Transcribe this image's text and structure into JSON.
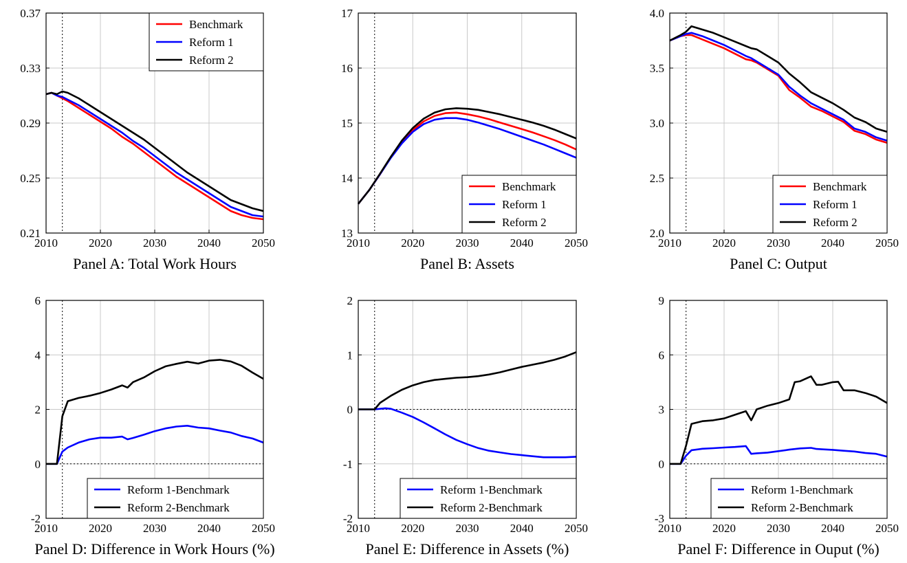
{
  "colors": {
    "benchmark": "#ff0000",
    "reform1": "#0000ff",
    "reform2": "#000000",
    "grid": "#c8c8c8"
  },
  "chart_data": [
    {
      "type": "line",
      "title": "Panel A: Total Work Hours",
      "xlim": [
        2010,
        2050
      ],
      "ylim": [
        0.21,
        0.37
      ],
      "xticks": [
        "2010",
        "2020",
        "2030",
        "2040",
        "2050"
      ],
      "yticks": [
        "0.21",
        "0.25",
        "0.29",
        "0.33",
        "0.37"
      ],
      "vline_x": 2013,
      "grid": true,
      "legend_position": "top-right",
      "legend": [
        "Benchmark",
        "Reform 1",
        "Reform 2"
      ],
      "series": [
        {
          "name": "Benchmark",
          "x": [
            2010,
            2011,
            2012,
            2013,
            2014,
            2016,
            2018,
            2020,
            2022,
            2024,
            2026,
            2028,
            2030,
            2032,
            2034,
            2036,
            2038,
            2040,
            2042,
            2044,
            2046,
            2048,
            2050
          ],
          "y": [
            0.311,
            0.312,
            0.31,
            0.308,
            0.306,
            0.301,
            0.296,
            0.291,
            0.286,
            0.28,
            0.275,
            0.269,
            0.263,
            0.257,
            0.251,
            0.246,
            0.241,
            0.236,
            0.231,
            0.226,
            0.223,
            0.221,
            0.22
          ]
        },
        {
          "name": "Reform 1",
          "x": [
            2010,
            2011,
            2012,
            2013,
            2014,
            2016,
            2018,
            2020,
            2022,
            2024,
            2026,
            2028,
            2030,
            2032,
            2034,
            2036,
            2038,
            2040,
            2042,
            2044,
            2046,
            2048,
            2050
          ],
          "y": [
            0.311,
            0.312,
            0.31,
            0.309,
            0.307,
            0.303,
            0.298,
            0.293,
            0.288,
            0.283,
            0.277,
            0.272,
            0.266,
            0.26,
            0.254,
            0.249,
            0.244,
            0.239,
            0.234,
            0.229,
            0.226,
            0.223,
            0.222
          ]
        },
        {
          "name": "Reform 2",
          "x": [
            2010,
            2011,
            2012,
            2013,
            2014,
            2016,
            2018,
            2020,
            2022,
            2024,
            2026,
            2028,
            2030,
            2032,
            2034,
            2036,
            2038,
            2040,
            2042,
            2044,
            2046,
            2048,
            2050
          ],
          "y": [
            0.311,
            0.312,
            0.311,
            0.313,
            0.312,
            0.308,
            0.303,
            0.298,
            0.293,
            0.288,
            0.283,
            0.278,
            0.272,
            0.266,
            0.26,
            0.254,
            0.249,
            0.244,
            0.239,
            0.234,
            0.231,
            0.228,
            0.226
          ]
        }
      ]
    },
    {
      "type": "line",
      "title": "Panel B: Assets",
      "xlim": [
        2010,
        2050
      ],
      "ylim": [
        13,
        17
      ],
      "xticks": [
        "2010",
        "2020",
        "2030",
        "2040",
        "2050"
      ],
      "yticks": [
        "13",
        "14",
        "15",
        "16",
        "17"
      ],
      "vline_x": 2013,
      "grid": true,
      "legend_position": "bottom-right",
      "legend": [
        "Benchmark",
        "Reform 1",
        "Reform 2"
      ],
      "series": [
        {
          "name": "Benchmark",
          "x": [
            2010,
            2012,
            2014,
            2016,
            2018,
            2020,
            2022,
            2024,
            2026,
            2028,
            2030,
            2032,
            2034,
            2036,
            2038,
            2040,
            2042,
            2044,
            2046,
            2048,
            2050
          ],
          "y": [
            13.53,
            13.78,
            14.07,
            14.38,
            14.65,
            14.87,
            15.03,
            15.13,
            15.18,
            15.19,
            15.16,
            15.12,
            15.07,
            15.01,
            14.95,
            14.89,
            14.83,
            14.76,
            14.69,
            14.61,
            14.52
          ]
        },
        {
          "name": "Reform 1",
          "x": [
            2010,
            2012,
            2014,
            2016,
            2018,
            2020,
            2022,
            2024,
            2026,
            2028,
            2030,
            2032,
            2034,
            2036,
            2038,
            2040,
            2042,
            2044,
            2046,
            2048,
            2050
          ],
          "y": [
            13.53,
            13.78,
            14.07,
            14.37,
            14.63,
            14.84,
            14.98,
            15.06,
            15.09,
            15.09,
            15.06,
            15.01,
            14.95,
            14.89,
            14.82,
            14.75,
            14.68,
            14.61,
            14.53,
            14.45,
            14.37
          ]
        },
        {
          "name": "Reform 2",
          "x": [
            2010,
            2012,
            2014,
            2016,
            2018,
            2020,
            2022,
            2024,
            2026,
            2028,
            2030,
            2032,
            2034,
            2036,
            2038,
            2040,
            2042,
            2044,
            2046,
            2048,
            2050
          ],
          "y": [
            13.53,
            13.78,
            14.08,
            14.39,
            14.68,
            14.91,
            15.08,
            15.19,
            15.25,
            15.27,
            15.26,
            15.24,
            15.2,
            15.16,
            15.11,
            15.06,
            15.01,
            14.95,
            14.88,
            14.8,
            14.72
          ]
        }
      ]
    },
    {
      "type": "line",
      "title": "Panel C: Output",
      "xlim": [
        2010,
        2050
      ],
      "ylim": [
        2.0,
        4.0
      ],
      "xticks": [
        "2010",
        "2020",
        "2030",
        "2040",
        "2050"
      ],
      "yticks": [
        "2.0",
        "2.5",
        "3.0",
        "3.5",
        "4.0"
      ],
      "vline_x": 2013,
      "grid": true,
      "legend_position": "bottom-right",
      "legend": [
        "Benchmark",
        "Reform 1",
        "Reform 2"
      ],
      "series": [
        {
          "name": "Benchmark",
          "x": [
            2010,
            2012,
            2013,
            2014,
            2016,
            2018,
            2020,
            2022,
            2024,
            2025,
            2026,
            2028,
            2030,
            2032,
            2034,
            2036,
            2038,
            2040,
            2042,
            2044,
            2046,
            2048,
            2050
          ],
          "y": [
            3.75,
            3.79,
            3.8,
            3.8,
            3.76,
            3.72,
            3.68,
            3.63,
            3.58,
            3.57,
            3.55,
            3.49,
            3.43,
            3.3,
            3.23,
            3.15,
            3.11,
            3.06,
            3.01,
            2.93,
            2.9,
            2.85,
            2.82
          ]
        },
        {
          "name": "Reform 1",
          "x": [
            2010,
            2012,
            2013,
            2014,
            2016,
            2018,
            2020,
            2022,
            2024,
            2025,
            2026,
            2028,
            2030,
            2032,
            2034,
            2036,
            2038,
            2040,
            2042,
            2044,
            2046,
            2048,
            2050
          ],
          "y": [
            3.75,
            3.79,
            3.81,
            3.82,
            3.79,
            3.75,
            3.71,
            3.66,
            3.61,
            3.59,
            3.56,
            3.5,
            3.44,
            3.33,
            3.25,
            3.18,
            3.13,
            3.08,
            3.03,
            2.95,
            2.92,
            2.87,
            2.84
          ]
        },
        {
          "name": "Reform 2",
          "x": [
            2010,
            2012,
            2013,
            2014,
            2016,
            2018,
            2020,
            2022,
            2024,
            2025,
            2026,
            2028,
            2030,
            2032,
            2034,
            2036,
            2038,
            2040,
            2042,
            2044,
            2046,
            2048,
            2050
          ],
          "y": [
            3.75,
            3.8,
            3.83,
            3.88,
            3.85,
            3.82,
            3.78,
            3.74,
            3.7,
            3.68,
            3.67,
            3.61,
            3.55,
            3.45,
            3.37,
            3.28,
            3.23,
            3.18,
            3.12,
            3.05,
            3.01,
            2.95,
            2.92
          ]
        }
      ]
    },
    {
      "type": "line",
      "title": "Panel D: Difference in Work Hours (%)",
      "xlim": [
        2010,
        2050
      ],
      "ylim": [
        -2,
        6
      ],
      "xticks": [
        "2010",
        "2020",
        "2030",
        "2040",
        "2050"
      ],
      "yticks": [
        "-2",
        "0",
        "2",
        "4",
        "6"
      ],
      "vline_x": 2013,
      "hline_y": 0,
      "grid": true,
      "legend_position": "bottom-right",
      "legend": [
        "Reform 1-Benchmark",
        "Reform 2-Benchmark"
      ],
      "series": [
        {
          "name": "Reform 1-Benchmark",
          "x": [
            2010,
            2011,
            2012,
            2013,
            2014,
            2016,
            2018,
            2020,
            2022,
            2024,
            2025,
            2026,
            2028,
            2030,
            2032,
            2034,
            2036,
            2038,
            2040,
            2042,
            2044,
            2046,
            2048,
            2050
          ],
          "y": [
            0,
            0,
            0,
            0.45,
            0.6,
            0.78,
            0.9,
            0.96,
            0.96,
            1.0,
            0.9,
            0.95,
            1.07,
            1.2,
            1.3,
            1.37,
            1.4,
            1.33,
            1.3,
            1.22,
            1.15,
            1.02,
            0.93,
            0.78
          ]
        },
        {
          "name": "Reform 2-Benchmark",
          "x": [
            2010,
            2011,
            2012,
            2013,
            2014,
            2016,
            2018,
            2020,
            2022,
            2024,
            2025,
            2026,
            2028,
            2030,
            2032,
            2034,
            2036,
            2038,
            2040,
            2042,
            2044,
            2046,
            2048,
            2050
          ],
          "y": [
            0,
            0,
            0,
            1.75,
            2.3,
            2.42,
            2.5,
            2.6,
            2.73,
            2.88,
            2.8,
            3.0,
            3.17,
            3.4,
            3.58,
            3.67,
            3.75,
            3.68,
            3.79,
            3.82,
            3.76,
            3.6,
            3.35,
            3.12
          ]
        }
      ]
    },
    {
      "type": "line",
      "title": "Panel E: Difference in Assets (%)",
      "xlim": [
        2010,
        2050
      ],
      "ylim": [
        -2,
        2
      ],
      "xticks": [
        "2010",
        "2020",
        "2030",
        "2040",
        "2050"
      ],
      "yticks": [
        "-2",
        "-1",
        "0",
        "1",
        "2"
      ],
      "vline_x": 2013,
      "hline_y": 0,
      "grid": true,
      "legend_position": "bottom-right",
      "legend": [
        "Reform 1-Benchmark",
        "Reform 2-Benchmark"
      ],
      "series": [
        {
          "name": "Reform 1-Benchmark",
          "x": [
            2010,
            2012,
            2013,
            2014,
            2015,
            2016,
            2018,
            2020,
            2022,
            2024,
            2026,
            2028,
            2030,
            2032,
            2034,
            2036,
            2038,
            2040,
            2042,
            2044,
            2046,
            2048,
            2050
          ],
          "y": [
            0,
            0,
            0,
            0.01,
            0.02,
            0.01,
            -0.06,
            -0.14,
            -0.24,
            -0.35,
            -0.46,
            -0.56,
            -0.64,
            -0.71,
            -0.76,
            -0.79,
            -0.82,
            -0.84,
            -0.86,
            -0.88,
            -0.88,
            -0.88,
            -0.87
          ]
        },
        {
          "name": "Reform 2-Benchmark",
          "x": [
            2010,
            2012,
            2013,
            2014,
            2016,
            2018,
            2020,
            2022,
            2024,
            2026,
            2028,
            2030,
            2032,
            2034,
            2036,
            2038,
            2040,
            2042,
            2044,
            2046,
            2048,
            2050
          ],
          "y": [
            0,
            0,
            0,
            0.12,
            0.25,
            0.36,
            0.44,
            0.5,
            0.54,
            0.56,
            0.58,
            0.59,
            0.61,
            0.64,
            0.68,
            0.73,
            0.78,
            0.82,
            0.86,
            0.91,
            0.97,
            1.05
          ]
        }
      ]
    },
    {
      "type": "line",
      "title": "Panel F: Difference in Ouput (%)",
      "xlim": [
        2010,
        2050
      ],
      "ylim": [
        -3,
        9
      ],
      "xticks": [
        "2010",
        "2020",
        "2030",
        "2040",
        "2050"
      ],
      "yticks": [
        "-3",
        "0",
        "3",
        "6",
        "9"
      ],
      "vline_x": 2013,
      "hline_y": 0,
      "grid": true,
      "legend_position": "bottom-right",
      "legend": [
        "Reform 1-Benchmark",
        "Reform 2-Benchmark"
      ],
      "series": [
        {
          "name": "Reform 1-Benchmark",
          "x": [
            2010,
            2011,
            2012,
            2013,
            2014,
            2016,
            2018,
            2020,
            2022,
            2024,
            2025,
            2026,
            2028,
            2030,
            2032,
            2034,
            2036,
            2037,
            2038,
            2040,
            2042,
            2044,
            2046,
            2048,
            2050
          ],
          "y": [
            0,
            0,
            0,
            0.45,
            0.75,
            0.83,
            0.86,
            0.9,
            0.93,
            0.98,
            0.55,
            0.58,
            0.62,
            0.7,
            0.78,
            0.85,
            0.88,
            0.82,
            0.8,
            0.77,
            0.72,
            0.68,
            0.6,
            0.55,
            0.4
          ]
        },
        {
          "name": "Reform 2-Benchmark",
          "x": [
            2010,
            2011,
            2012,
            2013,
            2014,
            2016,
            2018,
            2020,
            2022,
            2024,
            2025,
            2026,
            2028,
            2030,
            2032,
            2033,
            2034,
            2036,
            2037,
            2038,
            2040,
            2041,
            2042,
            2044,
            2046,
            2048,
            2050
          ],
          "y": [
            0,
            0,
            0,
            1.0,
            2.2,
            2.35,
            2.4,
            2.5,
            2.7,
            2.9,
            2.4,
            3.0,
            3.2,
            3.35,
            3.55,
            4.5,
            4.55,
            4.82,
            4.35,
            4.35,
            4.5,
            4.52,
            4.05,
            4.05,
            3.9,
            3.7,
            3.35
          ]
        }
      ]
    }
  ]
}
